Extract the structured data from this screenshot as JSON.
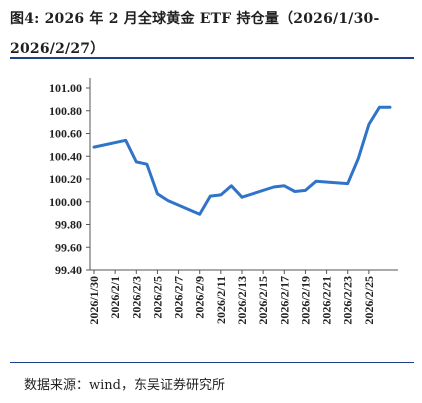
{
  "figure": {
    "title": "图4:  2026  年  2  月全球黄金  ETF  持仓量（2026/1/30-2026/2/27）",
    "source": "数据来源：wind，东吴证券研究所"
  },
  "colors": {
    "line": "#2f74c9",
    "rule": "#1e3f8c",
    "axis": "#555555"
  },
  "chart_data": {
    "type": "line",
    "title": "图4:  2026  年  2  月全球黄金  ETF  持仓量（2026/1/30-2026/2/27）",
    "xlabel": "",
    "ylabel": "",
    "ylim": [
      99.4,
      101.0
    ],
    "yticks": [
      "99.40",
      "99.60",
      "99.80",
      "100.00",
      "100.20",
      "100.40",
      "100.60",
      "100.80",
      "101.00"
    ],
    "xtick_labels": [
      "2026/1/30",
      "2026/2/1",
      "2026/2/3",
      "2026/2/5",
      "2026/2/7",
      "2026/2/9",
      "2026/2/11",
      "2026/2/13",
      "2026/2/15",
      "2026/2/17",
      "2026/2/19",
      "2026/2/21",
      "2026/2/23",
      "2026/2/25"
    ],
    "grid": false,
    "legend": "none",
    "x": [
      "2026/1/30",
      "2026/2/2",
      "2026/2/3",
      "2026/2/4",
      "2026/2/5",
      "2026/2/6",
      "2026/2/9",
      "2026/2/10",
      "2026/2/11",
      "2026/2/12",
      "2026/2/13",
      "2026/2/16",
      "2026/2/17",
      "2026/2/18",
      "2026/2/19",
      "2026/2/20",
      "2026/2/23",
      "2026/2/24",
      "2026/2/25",
      "2026/2/26",
      "2026/2/27"
    ],
    "series": [
      {
        "values": [
          100.48,
          100.54,
          100.35,
          100.33,
          100.07,
          100.01,
          99.89,
          100.05,
          100.06,
          100.14,
          100.04,
          100.13,
          100.14,
          100.09,
          100.1,
          100.18,
          100.16,
          100.38,
          100.68,
          100.83,
          100.83
        ]
      }
    ]
  }
}
